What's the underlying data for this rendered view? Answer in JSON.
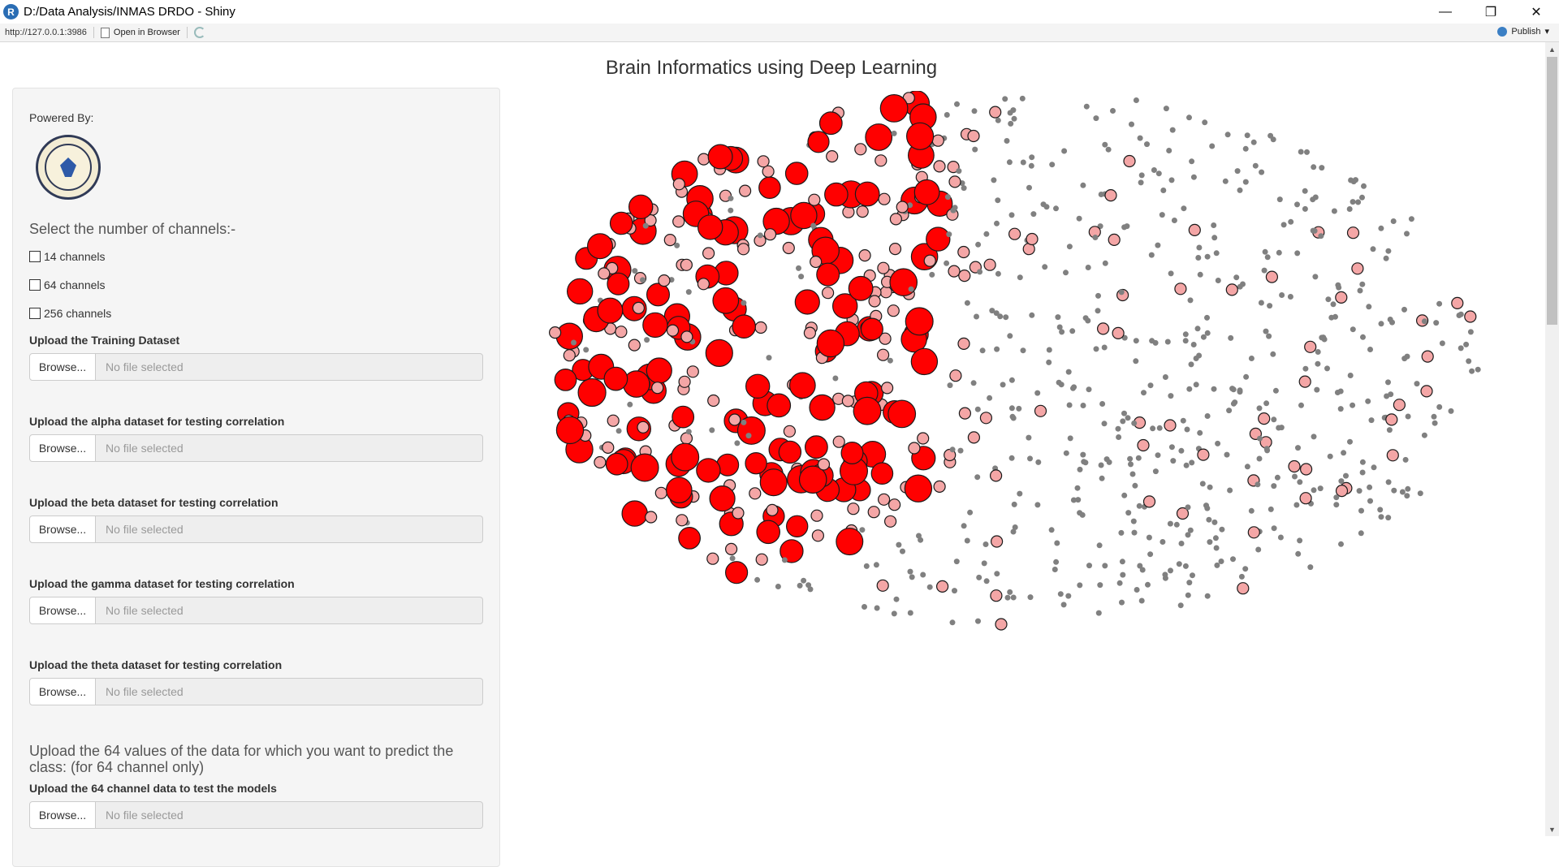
{
  "window": {
    "title": "D:/Data Analysis/INMAS DRDO - Shiny",
    "app_icon": "R",
    "controls": [
      "minimize-icon",
      "restore-icon",
      "close-icon"
    ]
  },
  "addressbar": {
    "url": "http://127.0.0.1:3986",
    "open_in_browser": "Open in Browser",
    "publish": "Publish"
  },
  "page": {
    "title": "Brain Informatics using Deep Learning"
  },
  "sidebar": {
    "powered_by": "Powered By:",
    "select_label": "Select the number of channels:-",
    "channels": [
      "14 channels",
      "64 channels",
      "256 channels"
    ],
    "uploads": [
      {
        "label": "Upload the Training Dataset",
        "button": "Browse...",
        "placeholder": "No file selected"
      },
      {
        "label": "Upload the alpha dataset for testing correlation",
        "button": "Browse...",
        "placeholder": "No file selected"
      },
      {
        "label": "Upload the beta dataset for testing correlation",
        "button": "Browse...",
        "placeholder": "No file selected"
      },
      {
        "label": "Upload the gamma dataset for testing correlation",
        "button": "Browse...",
        "placeholder": "No file selected"
      },
      {
        "label": "Upload the theta dataset for testing correlation",
        "button": "Browse...",
        "placeholder": "No file selected"
      }
    ],
    "note": "Upload the 64 values of the data for which you want to predict the class: (for 64 channel only)",
    "test_upload": {
      "label": "Upload the 64 channel data to test the models",
      "button": "Browse...",
      "placeholder": "No file selected"
    }
  },
  "chart_data": {
    "type": "scatter",
    "title": "",
    "xlabel": "",
    "ylabel": "",
    "grid": false,
    "legend": "none",
    "point_classes": [
      {
        "name": "",
        "color": "#808080",
        "size": "small"
      },
      {
        "name": "",
        "color": "#f4a6a6",
        "size": "medium"
      },
      {
        "name": "",
        "color": "#ff0000",
        "size": "large"
      }
    ],
    "note_values": "unlabeled 2D embedding of brain nodes; no axes or ticks printed"
  }
}
